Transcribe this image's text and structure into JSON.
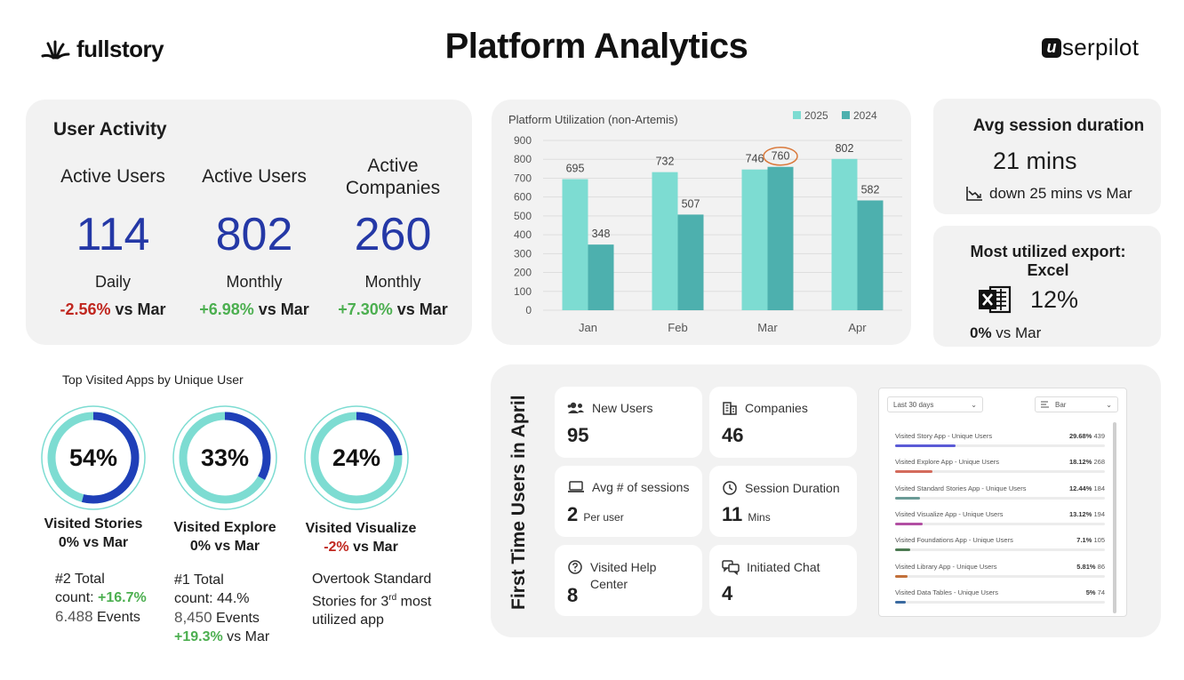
{
  "header": {
    "title": "Platform Analytics",
    "logo_left": "fullstory",
    "logo_right": "serpilot",
    "logo_right_badge": "u"
  },
  "user_activity": {
    "title": "User Activity",
    "cols": [
      {
        "heading": "Active Users",
        "value": "114",
        "period": "Daily",
        "change": "-2.56%",
        "vs": " vs Mar"
      },
      {
        "heading": "Active Users",
        "value": "802",
        "period": "Monthly",
        "change": "+6.98%",
        "vs": " vs Mar"
      },
      {
        "heading": "Active Companies",
        "value": "260",
        "period": "Monthly",
        "change": "+7.30%",
        "vs": " vs Mar"
      }
    ]
  },
  "chart_data": {
    "type": "bar",
    "title": "Platform Utilization (non-Artemis)",
    "categories": [
      "Jan",
      "Feb",
      "Mar",
      "Apr"
    ],
    "series": [
      {
        "name": "2025",
        "values": [
          695,
          732,
          746,
          802
        ]
      },
      {
        "name": "2024",
        "values": [
          348,
          507,
          760,
          582
        ]
      }
    ],
    "ylim": [
      0,
      900
    ],
    "yticks": [
      "0",
      "100",
      "200",
      "300",
      "400",
      "500",
      "600",
      "700",
      "800",
      "900"
    ],
    "colors": [
      "#7ddcd2",
      "#4db0ae"
    ],
    "legend_position": "top-right",
    "highlighted_label": "760",
    "grid": true
  },
  "session": {
    "title": "Avg session duration",
    "value": "21 mins",
    "change": "down 25 mins vs Mar",
    "icon": "trend-down-icon"
  },
  "export": {
    "title_line1": "Most utilized export:",
    "title_line2": "Excel",
    "value": "12%",
    "change_bold": "0%",
    "change_rest": " vs Mar",
    "icon": "excel-icon"
  },
  "top_apps": {
    "title": "Top Visited Apps by Unique User",
    "items": [
      {
        "pct": "54%",
        "fraction": 0.54,
        "name": "Visited Stories",
        "change": "0%",
        "vs": " vs Mar",
        "note1": "#2 Total",
        "note2": "count: ",
        "note2_change": "+16.7%",
        "events_num": "6.488",
        "events_label": " Events",
        "extra_change": "",
        "extra_vs": ""
      },
      {
        "pct": "33%",
        "fraction": 0.33,
        "name": "Visited Explore",
        "change": "0%",
        "vs": " vs Mar",
        "note1": "#1 Total",
        "note2": "count: 44.%",
        "note2_change": "",
        "events_num": "8,450",
        "events_label": " Events",
        "extra_change": "+19.3%",
        "extra_vs": " vs Mar"
      },
      {
        "pct": "24%",
        "fraction": 0.24,
        "name": "Visited Visualize",
        "change": "-2%",
        "vs": " vs Mar",
        "note1": "Overtook Standard",
        "note2": "Stories for 3",
        "note2_sup": "rd",
        "note2_rest": " most",
        "note3": "utilized app"
      }
    ]
  },
  "first_time_users": {
    "title": "First Time Users in April",
    "cards": [
      {
        "label": "New Users",
        "value": "95",
        "sub": "",
        "icon": "users-icon"
      },
      {
        "label": "Companies",
        "value": "46",
        "sub": "",
        "icon": "building-icon"
      },
      {
        "label": "Avg # of sessions",
        "value": "2",
        "sub": "Per user",
        "icon": "laptop-icon"
      },
      {
        "label": "Session Duration",
        "value": "11",
        "sub": "Mins",
        "icon": "clock-icon"
      },
      {
        "label": "Visited Help Center",
        "value": "8",
        "sub": "",
        "icon": "help-icon"
      },
      {
        "label": "Initiated Chat",
        "value": "4",
        "sub": "",
        "icon": "chat-icon"
      }
    ],
    "list": {
      "range_select": "Last 30 days",
      "view_select": "Bar",
      "items": [
        {
          "label": "Visited Story App - Unique Users",
          "pct": "29.68%",
          "count": "439",
          "fill": 0.29,
          "color": "#5b5bd6"
        },
        {
          "label": "Visited Explore App - Unique Users",
          "pct": "18.12%",
          "count": "268",
          "fill": 0.18,
          "color": "#d46b5c"
        },
        {
          "label": "Visited Standard Stories App - Unique Users",
          "pct": "12.44%",
          "count": "184",
          "fill": 0.12,
          "color": "#6a9a96"
        },
        {
          "label": "Visited Visualize App - Unique Users",
          "pct": "13.12%",
          "count": "194",
          "fill": 0.13,
          "color": "#b24fa3"
        },
        {
          "label": "Visited Foundations App - Unique Users",
          "pct": "7.1%",
          "count": "105",
          "fill": 0.07,
          "color": "#4c7a52"
        },
        {
          "label": "Visited Library App - Unique Users",
          "pct": "5.81%",
          "count": "86",
          "fill": 0.06,
          "color": "#c2703a"
        },
        {
          "label": "Visited Data Tables - Unique Users",
          "pct": "5%",
          "count": "74",
          "fill": 0.05,
          "color": "#3a6aa0"
        }
      ]
    }
  }
}
